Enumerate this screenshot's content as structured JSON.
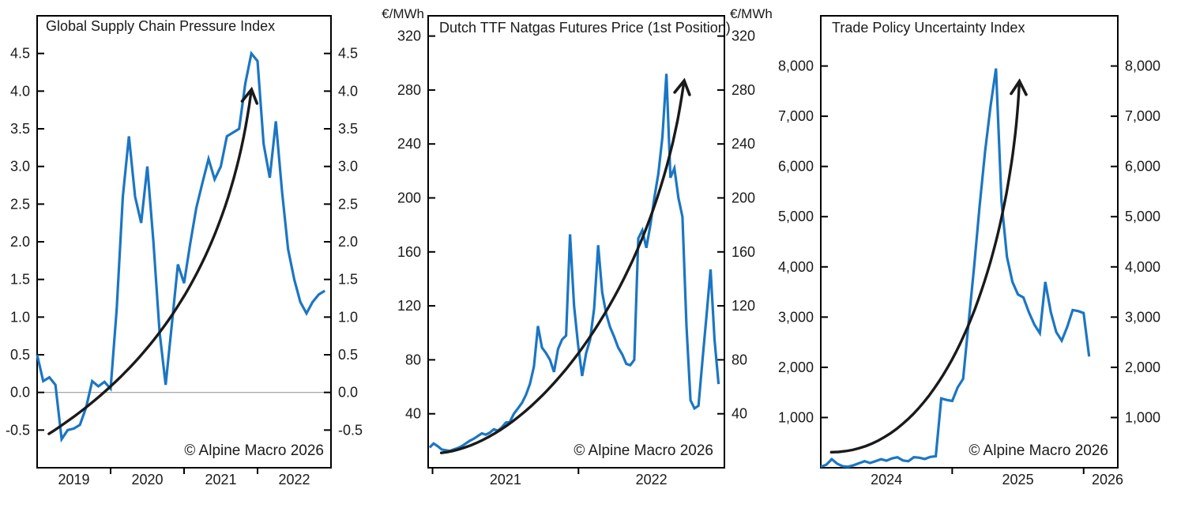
{
  "figure": {
    "background": "#ffffff",
    "colors": {
      "series_line": "#1b76c3",
      "trend_arrow": "#1a1a1a",
      "axis": "#000000",
      "zero_line": "#9c9c9c",
      "text": "#1a1a1a"
    }
  },
  "chart_data": [
    {
      "type": "line",
      "title": "Global Supply Chain Pressure Index",
      "copyright": "© Alpine Macro 2026",
      "unit_label": "",
      "xlim": [
        2019.0,
        2023.0
      ],
      "ylim": [
        -1.0,
        5.0
      ],
      "grid": false,
      "legend": "none",
      "yticks": [
        -0.5,
        0.0,
        0.5,
        1.0,
        1.5,
        2.0,
        2.5,
        3.0,
        3.5,
        4.0,
        4.5
      ],
      "ytick_labels": [
        "-0.5",
        "0.0",
        "0.5",
        "1.0",
        "1.5",
        "2.0",
        "2.5",
        "3.0",
        "3.5",
        "4.0",
        "4.5"
      ],
      "ytick_sides": "both",
      "xticks_year_boundaries": [
        2020,
        2021,
        2022
      ],
      "xtick_labels": [
        {
          "text": "2019",
          "x_year": 2019.5
        },
        {
          "text": "2020",
          "x_year": 2020.5
        },
        {
          "text": "2021",
          "x_year": 2021.5
        },
        {
          "text": "2022",
          "x_year": 2022.5
        }
      ],
      "zero_line_value": 0.0,
      "series": [
        {
          "name": "Global Supply Chain Pressure Index (monthly)",
          "x_start_year": 2019.0,
          "x_step_years": 0.0833333,
          "values": [
            0.5,
            0.15,
            0.2,
            0.1,
            -0.62,
            -0.5,
            -0.48,
            -0.43,
            -0.2,
            0.15,
            0.08,
            0.14,
            0.05,
            1.1,
            2.6,
            3.4,
            2.6,
            2.25,
            3.0,
            2.0,
            0.8,
            0.1,
            0.9,
            1.7,
            1.45,
            1.97,
            2.45,
            2.78,
            3.1,
            2.83,
            3.0,
            3.4,
            3.45,
            3.5,
            4.1,
            4.5,
            4.4,
            3.3,
            2.85,
            3.6,
            2.67,
            1.9,
            1.5,
            1.2,
            1.05,
            1.2,
            1.3,
            1.35
          ]
        }
      ],
      "trend_arrow_bezier_year_value": [
        [
          2019.16,
          -0.55
        ],
        [
          2020.32,
          0.18
        ],
        [
          2021.56,
          1.43
        ],
        [
          2021.91,
          3.97
        ]
      ]
    },
    {
      "type": "line",
      "title": "Dutch TTF Natgas Futures Price (1st Position)",
      "copyright": "© Alpine Macro 2026",
      "unit_label": "€/MWh",
      "xlim": [
        2020.97,
        2023.0
      ],
      "ylim": [
        0,
        335
      ],
      "grid": false,
      "legend": "none",
      "yticks": [
        40,
        80,
        120,
        160,
        200,
        240,
        280,
        320
      ],
      "ytick_labels": [
        "40",
        "80",
        "120",
        "160",
        "200",
        "240",
        "280",
        "320"
      ],
      "ytick_sides": "both",
      "xticks_year_boundaries": [
        2021,
        2022
      ],
      "xtick_labels": [
        {
          "text": "2021",
          "x_year": 2021.5
        },
        {
          "text": "2022",
          "x_year": 2022.5
        }
      ],
      "zero_line_value": null,
      "series": [
        {
          "name": "Dutch TTF natgas futures price, 1st position (€/MWh)",
          "x_start_year": 2020.98,
          "x_step_years": 0.0275,
          "values": [
            15,
            18,
            16,
            13.5,
            13,
            12.5,
            13.5,
            14.5,
            16,
            18,
            20,
            21.5,
            23.5,
            25.5,
            24.5,
            26,
            28.5,
            27.5,
            30,
            33.5,
            34,
            40,
            44,
            48,
            54,
            62,
            75,
            105,
            89,
            85,
            80,
            71,
            88,
            95,
            98,
            173,
            120,
            91,
            68,
            85,
            95,
            118,
            165,
            130,
            114,
            104,
            97,
            89,
            84,
            77,
            76,
            80,
            170,
            176,
            163,
            180,
            200,
            218,
            245,
            292,
            215,
            222,
            200,
            186,
            105,
            50,
            44,
            46,
            80,
            113,
            147,
            95,
            62
          ]
        }
      ],
      "trend_arrow_bezier_year_value": [
        [
          2021.06,
          11
        ],
        [
          2021.72,
          19
        ],
        [
          2022.53,
          136
        ],
        [
          2022.72,
          284
        ]
      ]
    },
    {
      "type": "line",
      "title": "Trade Policy Uncertainty Index",
      "copyright": "© Alpine Macro 2026",
      "unit_label": "",
      "xlim": [
        2024.0,
        2026.26
      ],
      "ylim": [
        0,
        9000
      ],
      "grid": false,
      "legend": "none",
      "yticks": [
        1000,
        2000,
        3000,
        4000,
        5000,
        6000,
        7000,
        8000
      ],
      "ytick_labels": [
        "1,000",
        "2,000",
        "3,000",
        "4,000",
        "5,000",
        "6,000",
        "7,000",
        "8,000"
      ],
      "ytick_sides": "both",
      "xticks_year_boundaries": [
        2025,
        2026
      ],
      "xtick_labels": [
        {
          "text": "2024",
          "x_year": 2024.5
        },
        {
          "text": "2025",
          "x_year": 2025.5
        },
        {
          "text": "2026",
          "x_year": 2026.5
        }
      ],
      "zero_line_value": null,
      "series": [
        {
          "name": "Trade Policy Uncertainty Index (semi-monthly)",
          "x_start_year": 2024.0,
          "x_step_years": 0.0416667,
          "values": [
            20,
            60,
            170,
            80,
            30,
            20,
            50,
            90,
            130,
            95,
            130,
            170,
            140,
            185,
            210,
            145,
            130,
            210,
            200,
            175,
            215,
            230,
            1380,
            1350,
            1330,
            1600,
            1770,
            2900,
            4000,
            5200,
            6300,
            7200,
            7950,
            5300,
            4200,
            3700,
            3450,
            3390,
            3100,
            2850,
            2680,
            3700,
            3100,
            2700,
            2530,
            2800,
            3140,
            3120,
            3080,
            2215
          ]
        }
      ],
      "trend_arrow_bezier_year_value": [
        [
          2024.08,
          310
        ],
        [
          2025.0,
          310
        ],
        [
          2025.45,
          4520
        ],
        [
          2025.51,
          7620
        ]
      ]
    }
  ]
}
